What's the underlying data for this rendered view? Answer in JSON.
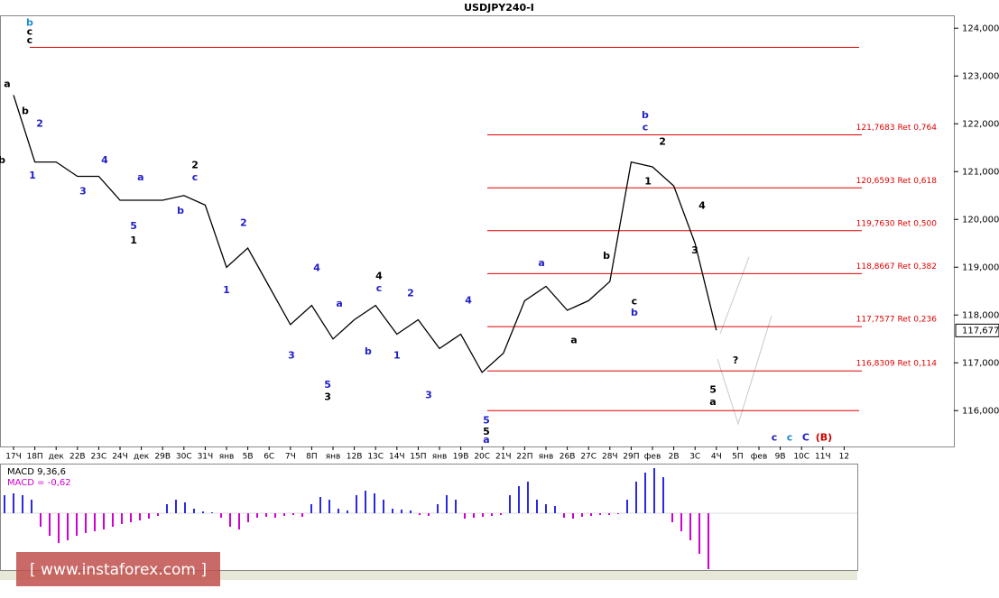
{
  "chart_data": {
    "type": "line",
    "title": "USDJPY240-I",
    "categories": [
      "17Ч",
      "18П",
      "дек",
      "22В",
      "23С",
      "24Ч",
      "дек",
      "29В",
      "30С",
      "31Ч",
      "янв",
      "5В",
      "6С",
      "7Ч",
      "8П",
      "янв",
      "12В",
      "13С",
      "14Ч",
      "15П",
      "янв",
      "19В",
      "20С",
      "21Ч",
      "22П",
      "янв",
      "26В",
      "27С",
      "28Ч",
      "29П",
      "фев",
      "2В",
      "3С",
      "4Ч",
      "5П",
      "фев",
      "9В",
      "10С",
      "11Ч",
      "12"
    ],
    "values": [
      122.6,
      121.2,
      121.2,
      120.9,
      120.9,
      120.4,
      120.4,
      120.4,
      120.5,
      120.3,
      119.0,
      119.4,
      118.6,
      117.8,
      118.2,
      117.5,
      117.9,
      118.2,
      117.6,
      117.9,
      117.3,
      117.6,
      116.8,
      117.2,
      118.3,
      118.6,
      118.1,
      118.3,
      118.7,
      121.2,
      121.1,
      120.7,
      119.5,
      117.68,
      null,
      null,
      null,
      null,
      null,
      null
    ],
    "color": "#000000",
    "ylim": [
      115.25,
      124.25
    ],
    "yticks": [
      {
        "value": 116,
        "label": "116,000"
      },
      {
        "value": 117,
        "label": "117,000"
      },
      {
        "value": 118,
        "label": "118,000"
      },
      {
        "value": 119,
        "label": "119,000"
      },
      {
        "value": 120,
        "label": "120,000"
      },
      {
        "value": 121,
        "label": "121,000"
      },
      {
        "value": 122,
        "label": "122,000"
      },
      {
        "value": 123,
        "label": "123,000"
      },
      {
        "value": 124,
        "label": "124,000"
      }
    ],
    "last_price": {
      "value": 117.677,
      "label": "117,677"
    },
    "level_color": "#e00000",
    "levels": [
      {
        "value": 121.7683,
        "label": "121,7683 Ret 0,764"
      },
      {
        "value": 120.6593,
        "label": "120,6593 Ret 0,618"
      },
      {
        "value": 119.763,
        "label": "119,7630 Ret 0,500"
      },
      {
        "value": 118.8667,
        "label": "118,8667 Ret 0,382"
      },
      {
        "value": 117.7577,
        "label": "117,7577 Ret 0,236"
      },
      {
        "value": 116.8309,
        "label": "116,8309 Ret 0,114"
      }
    ],
    "extra_levels": [
      123.6,
      116.0
    ],
    "annotations": [
      {
        "text": "b",
        "x": 0.76,
        "y": 124.11,
        "color": "#1a8ad4"
      },
      {
        "text": "c",
        "x": 0.76,
        "y": 123.92,
        "color": "#000000"
      },
      {
        "text": "c",
        "x": 0.76,
        "y": 123.74,
        "color": "#000000"
      },
      {
        "text": "a",
        "x": -0.3,
        "y": 122.83,
        "color": "#000000"
      },
      {
        "text": "b",
        "x": 0.55,
        "y": 122.26,
        "color": "#000000"
      },
      {
        "text": "b",
        "x": -0.55,
        "y": 121.23,
        "color": "#000000"
      },
      {
        "text": "2",
        "x": 1.23,
        "y": 122.0,
        "color": "#1f1fc8"
      },
      {
        "text": "1",
        "x": 0.89,
        "y": 120.91,
        "color": "#1f1fc8"
      },
      {
        "text": "3",
        "x": 3.26,
        "y": 120.58,
        "color": "#1f1fc8"
      },
      {
        "text": "4",
        "x": 4.28,
        "y": 121.23,
        "color": "#1f1fc8"
      },
      {
        "text": "a",
        "x": 5.97,
        "y": 120.87,
        "color": "#1f1fc8"
      },
      {
        "text": "2",
        "x": 8.52,
        "y": 121.13,
        "color": "#000000"
      },
      {
        "text": "c",
        "x": 8.52,
        "y": 120.87,
        "color": "#1f1fc8"
      },
      {
        "text": "b",
        "x": 7.84,
        "y": 120.17,
        "color": "#1f1fc8"
      },
      {
        "text": "5",
        "x": 5.64,
        "y": 119.85,
        "color": "#1f1fc8"
      },
      {
        "text": "1",
        "x": 5.64,
        "y": 119.55,
        "color": "#000000"
      },
      {
        "text": "2",
        "x": 10.8,
        "y": 119.92,
        "color": "#1f1fc8"
      },
      {
        "text": "1",
        "x": 10.0,
        "y": 118.51,
        "color": "#1f1fc8"
      },
      {
        "text": "4",
        "x": 14.24,
        "y": 118.98,
        "color": "#1f1fc8"
      },
      {
        "text": "4",
        "x": 17.16,
        "y": 118.81,
        "color": "#000000"
      },
      {
        "text": "c",
        "x": 17.16,
        "y": 118.55,
        "color": "#1f1fc8"
      },
      {
        "text": "a",
        "x": 15.3,
        "y": 118.23,
        "color": "#1f1fc8"
      },
      {
        "text": "2",
        "x": 18.64,
        "y": 118.45,
        "color": "#1f1fc8"
      },
      {
        "text": "4",
        "x": 21.36,
        "y": 118.3,
        "color": "#1f1fc8"
      },
      {
        "text": "3",
        "x": 13.05,
        "y": 117.15,
        "color": "#1f1fc8"
      },
      {
        "text": "b",
        "x": 16.65,
        "y": 117.23,
        "color": "#1f1fc8"
      },
      {
        "text": "1",
        "x": 18.0,
        "y": 117.15,
        "color": "#1f1fc8"
      },
      {
        "text": "5",
        "x": 14.75,
        "y": 116.53,
        "color": "#1f1fc8"
      },
      {
        "text": "3",
        "x": 14.75,
        "y": 116.28,
        "color": "#000000"
      },
      {
        "text": "3",
        "x": 19.49,
        "y": 116.32,
        "color": "#1f1fc8"
      },
      {
        "text": "5",
        "x": 22.2,
        "y": 115.79,
        "color": "#1f1fc8"
      },
      {
        "text": "5",
        "x": 22.2,
        "y": 115.55,
        "color": "#000000"
      },
      {
        "text": "a",
        "x": 22.2,
        "y": 115.38,
        "color": "#1f1fc8"
      },
      {
        "text": "a",
        "x": 24.79,
        "y": 119.08,
        "color": "#1f1fc8"
      },
      {
        "text": "b",
        "x": 27.84,
        "y": 119.23,
        "color": "#000000"
      },
      {
        "text": "c",
        "x": 29.15,
        "y": 118.28,
        "color": "#000000"
      },
      {
        "text": "b",
        "x": 29.15,
        "y": 118.04,
        "color": "#1f1fc8"
      },
      {
        "text": "a",
        "x": 26.31,
        "y": 117.47,
        "color": "#000000"
      },
      {
        "text": "b",
        "x": 29.66,
        "y": 122.17,
        "color": "#1f1fc8"
      },
      {
        "text": "c",
        "x": 29.66,
        "y": 121.92,
        "color": "#1f1fc8"
      },
      {
        "text": "2",
        "x": 30.47,
        "y": 121.62,
        "color": "#000000"
      },
      {
        "text": "1",
        "x": 29.79,
        "y": 120.79,
        "color": "#000000"
      },
      {
        "text": "4",
        "x": 32.33,
        "y": 120.28,
        "color": "#000000"
      },
      {
        "text": "3",
        "x": 31.99,
        "y": 119.34,
        "color": "#000000"
      },
      {
        "text": "?",
        "x": 33.9,
        "y": 117.04,
        "color": "#000000"
      },
      {
        "text": "5",
        "x": 32.84,
        "y": 116.43,
        "color": "#000000"
      },
      {
        "text": "a",
        "x": 32.84,
        "y": 116.17,
        "color": "#000000"
      },
      {
        "text": "c",
        "x": 35.72,
        "y": 115.43,
        "color": "#1f1fc8"
      },
      {
        "text": "c",
        "x": 36.44,
        "y": 115.43,
        "color": "#1a8ad4"
      },
      {
        "text": "C",
        "x": 37.2,
        "y": 115.43,
        "color": "#1f1fc8"
      },
      {
        "text": "(B)",
        "x": 38.05,
        "y": 115.43,
        "color": "#d00000"
      }
    ],
    "macd": {
      "title": "MACD 9,36,6",
      "label": "MACD = -0,62",
      "ylim": [
        -0.63,
        0.52
      ],
      "up_color": "#2a2ae0",
      "down_color": "#d000d0",
      "values": [
        0.2,
        0.22,
        0.2,
        0.15,
        -0.15,
        -0.25,
        -0.33,
        -0.3,
        -0.25,
        -0.22,
        -0.2,
        -0.18,
        -0.15,
        -0.12,
        -0.1,
        -0.08,
        -0.06,
        -0.03,
        0.1,
        0.15,
        0.12,
        0.05,
        0.02,
        0.01,
        -0.05,
        -0.15,
        -0.18,
        -0.1,
        -0.05,
        -0.04,
        -0.05,
        -0.03,
        -0.02,
        -0.04,
        0.1,
        0.18,
        0.15,
        0.05,
        0.03,
        0.2,
        0.25,
        0.22,
        0.15,
        0.05,
        0.04,
        0.03,
        -0.02,
        -0.03,
        0.1,
        0.2,
        0.15,
        -0.06,
        -0.05,
        -0.04,
        -0.03,
        -0.02,
        0.2,
        0.3,
        0.35,
        0.15,
        0.1,
        0.08,
        -0.05,
        -0.06,
        -0.04,
        -0.03,
        -0.02,
        -0.02,
        -0.01,
        0.15,
        0.35,
        0.45,
        0.5,
        0.4,
        -0.1,
        -0.2,
        -0.3,
        -0.45,
        -0.62
      ]
    },
    "watermark": "[ www.instaforex.com ]"
  }
}
